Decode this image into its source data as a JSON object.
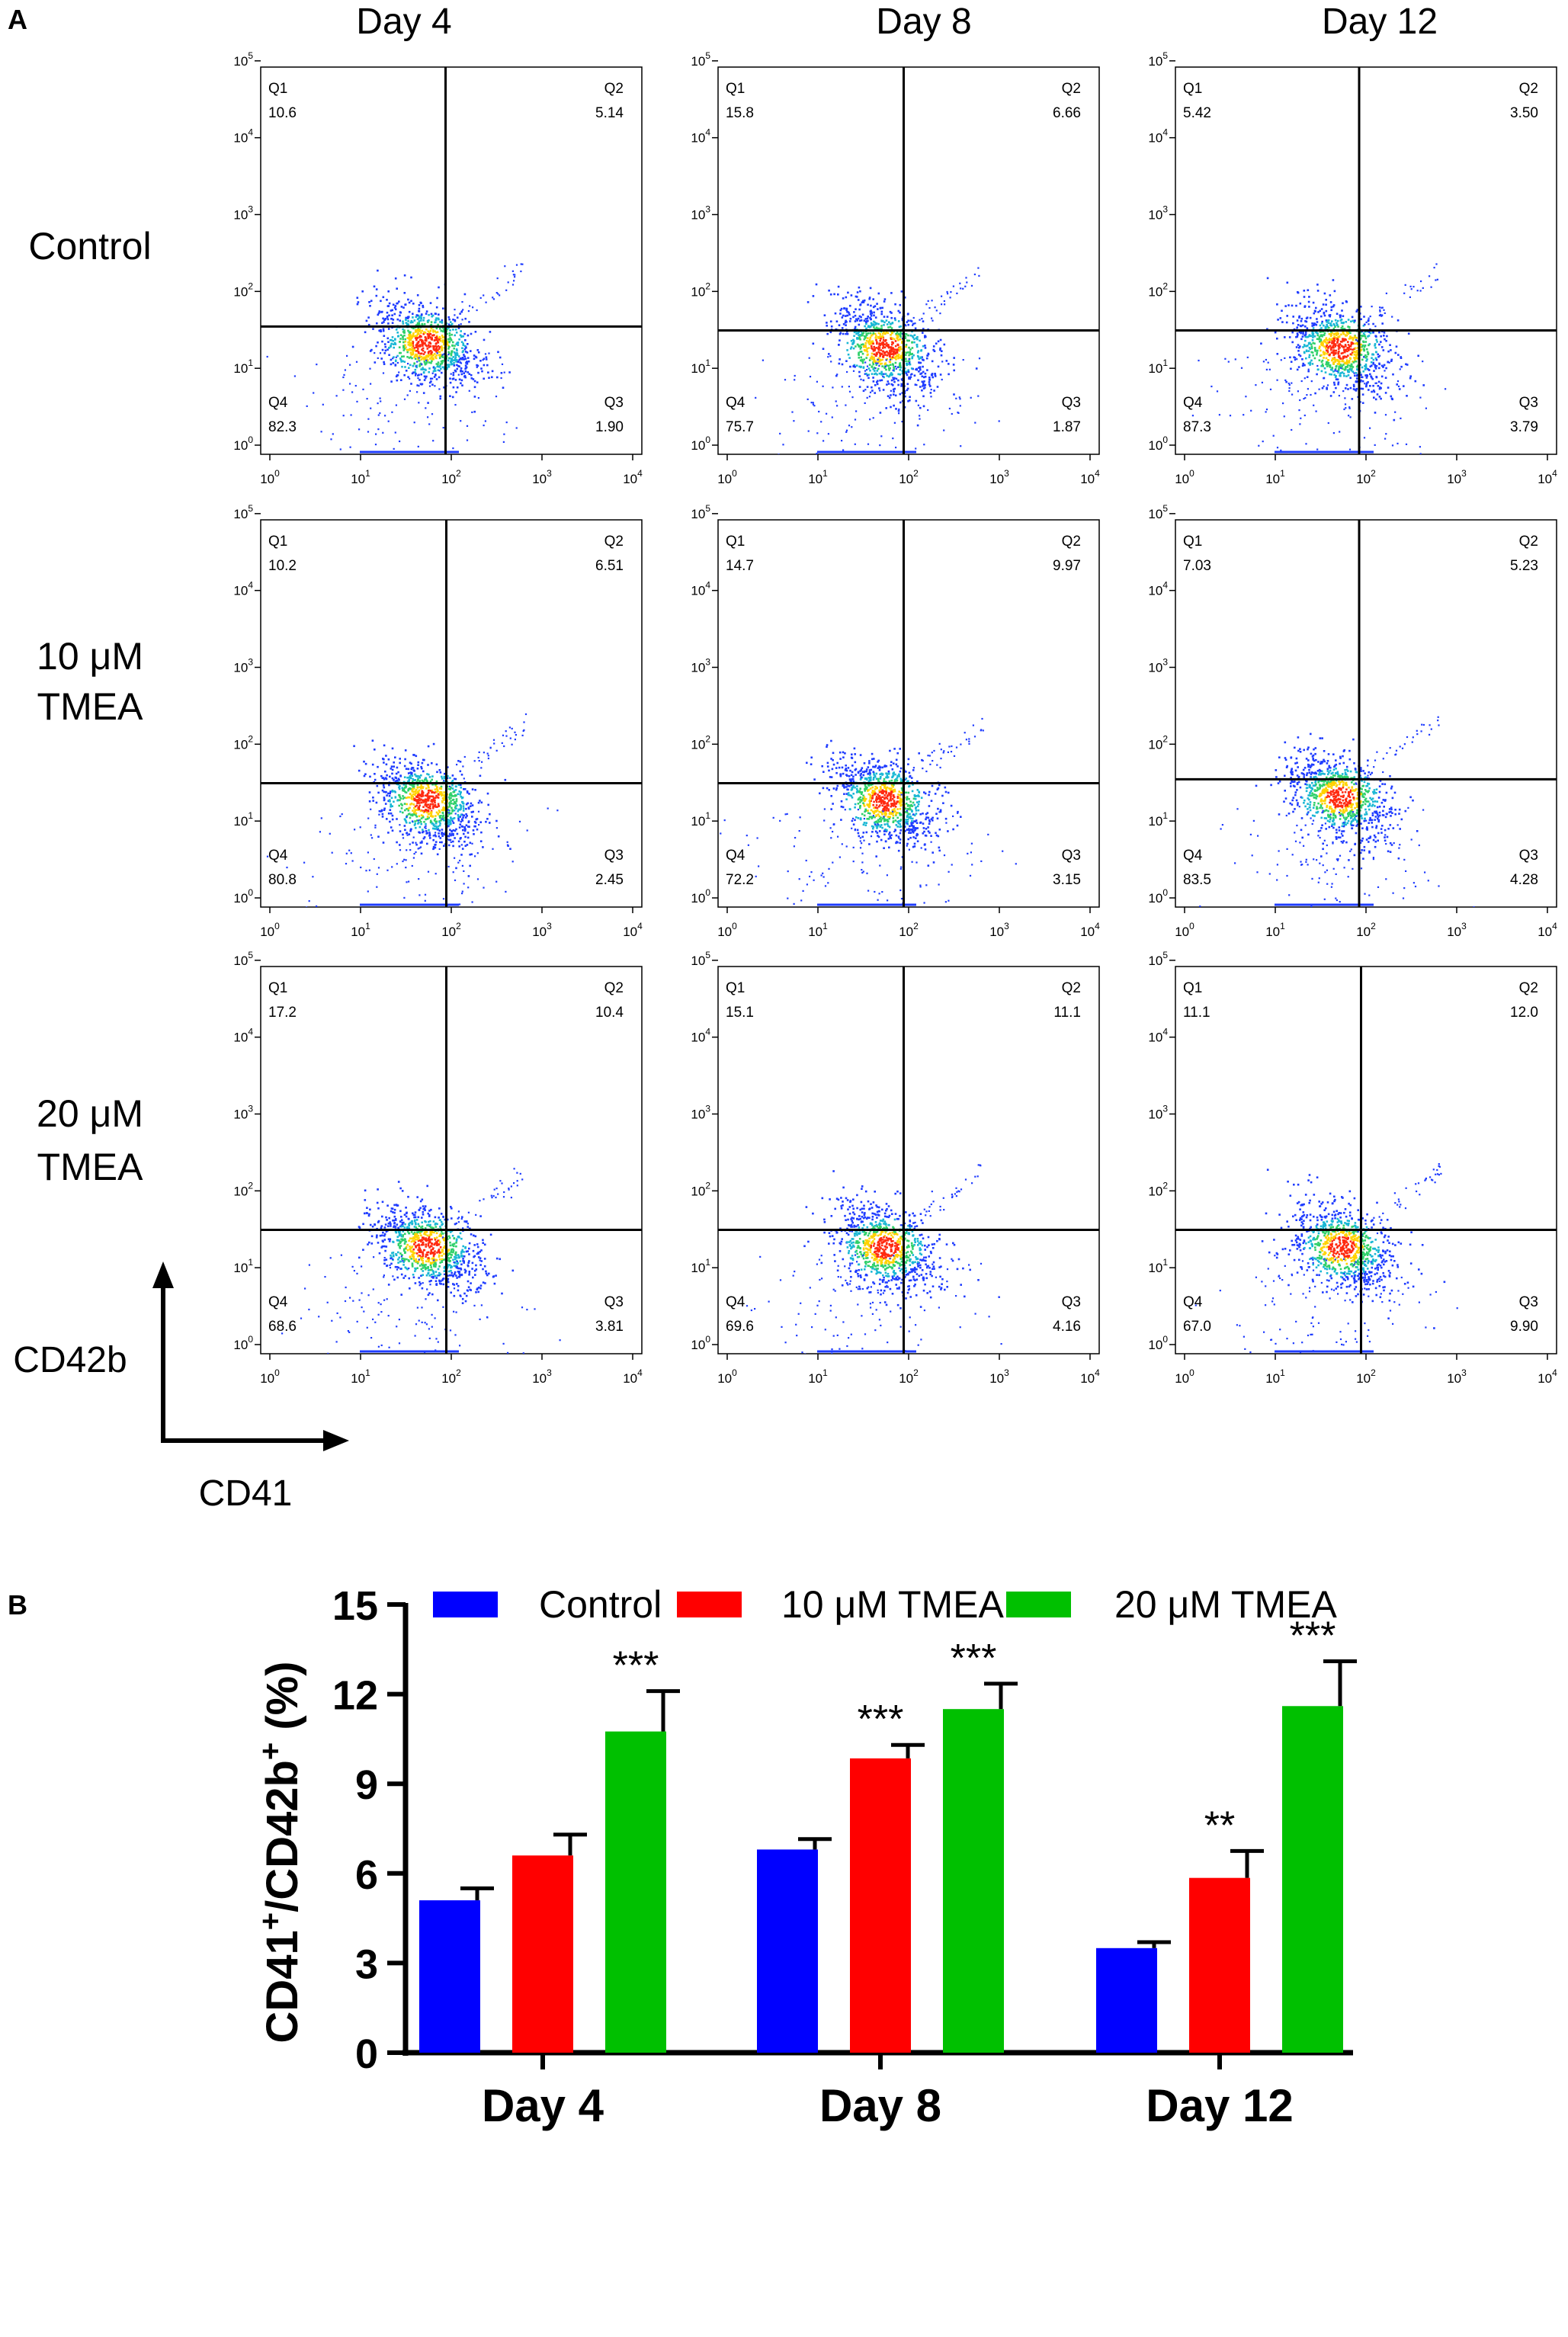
{
  "panel_a": {
    "label": "A",
    "columns": [
      "Day 4",
      "Day 8",
      "Day 12"
    ],
    "rows": [
      {
        "line1": "Control",
        "line2": ""
      },
      {
        "line1": "10 μM",
        "line2": "TMEA"
      },
      {
        "line1": "20 μM",
        "line2": "TMEA"
      }
    ],
    "y_axis_title": "CD42b",
    "x_axis_title": "CD41",
    "tick_exponents": [
      "0",
      "1",
      "2",
      "3",
      "4"
    ],
    "y_tick_exponents": [
      "0",
      "1",
      "2",
      "3",
      "4",
      "5"
    ],
    "tick_base": "10",
    "quadrant_names": [
      "Q1",
      "Q2",
      "Q4",
      "Q3"
    ],
    "plots": [
      {
        "row": 0,
        "col": 0,
        "Q1": "10.6",
        "Q2": "5.14",
        "Q3": "1.90",
        "Q4": "82.3"
      },
      {
        "row": 0,
        "col": 1,
        "Q1": "15.8",
        "Q2": "6.66",
        "Q3": "1.87",
        "Q4": "75.7"
      },
      {
        "row": 0,
        "col": 2,
        "Q1": "5.42",
        "Q2": "3.50",
        "Q3": "3.79",
        "Q4": "87.3"
      },
      {
        "row": 1,
        "col": 0,
        "Q1": "10.2",
        "Q2": "6.51",
        "Q3": "2.45",
        "Q4": "80.8"
      },
      {
        "row": 1,
        "col": 1,
        "Q1": "14.7",
        "Q2": "9.97",
        "Q3": "3.15",
        "Q4": "72.2"
      },
      {
        "row": 1,
        "col": 2,
        "Q1": "7.03",
        "Q2": "5.23",
        "Q3": "4.28",
        "Q4": "83.5"
      },
      {
        "row": 2,
        "col": 0,
        "Q1": "17.2",
        "Q2": "10.4",
        "Q3": "3.81",
        "Q4": "68.6"
      },
      {
        "row": 2,
        "col": 1,
        "Q1": "15.1",
        "Q2": "11.1",
        "Q3": "4.16",
        "Q4": "69.6"
      },
      {
        "row": 2,
        "col": 2,
        "Q1": "11.1",
        "Q2": "12.0",
        "Q3": "9.90",
        "Q4": "67.0"
      }
    ]
  },
  "panel_b": {
    "label": "B",
    "ylabel_main": "CD41",
    "ylabel_sup1": "+",
    "ylabel_mid": "/CD42b",
    "ylabel_sup2": "+",
    "ylabel_tail": " (%)"
  },
  "chart_data": {
    "type": "bar",
    "title": "",
    "xlabel": "",
    "ylabel": "CD41+/CD42b+ (%)",
    "ylim": [
      0,
      15
    ],
    "yticks": [
      0,
      3,
      6,
      9,
      12,
      15
    ],
    "categories": [
      "Day 4",
      "Day 8",
      "Day 12"
    ],
    "legend_position": "top",
    "series": [
      {
        "name": "Control",
        "color": "#0000ff",
        "values": [
          5.1,
          6.8,
          3.5
        ],
        "errors": [
          0.4,
          0.35,
          0.2
        ],
        "significance": [
          "",
          "",
          ""
        ]
      },
      {
        "name": "10 μM TMEA",
        "color": "#ff0000",
        "values": [
          6.6,
          9.85,
          5.85
        ],
        "errors": [
          0.7,
          0.45,
          0.9
        ],
        "significance": [
          "",
          "***",
          "**"
        ]
      },
      {
        "name": "20 μM TMEA",
        "color": "#00c000",
        "values": [
          10.75,
          11.5,
          11.6
        ],
        "errors": [
          1.35,
          0.85,
          1.5
        ],
        "significance": [
          "***",
          "***",
          "***"
        ]
      }
    ]
  }
}
